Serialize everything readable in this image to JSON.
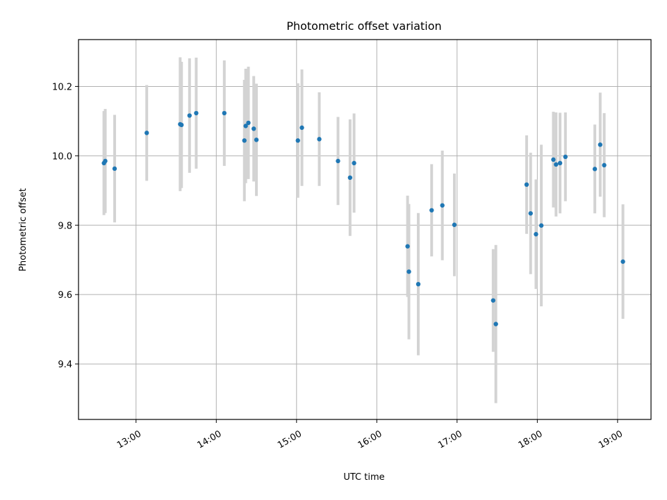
{
  "chart_data": {
    "type": "scatter",
    "title": "Photometric offset variation",
    "xlabel": "UTC time",
    "ylabel": "Photometric offset",
    "grid": true,
    "xlim": [
      "12:17",
      "19:25"
    ],
    "ylim": [
      9.24,
      10.335
    ],
    "x_ticks": [
      "13:00",
      "14:00",
      "15:00",
      "16:00",
      "17:00",
      "18:00",
      "19:00"
    ],
    "y_ticks": [
      9.4,
      9.6,
      9.8,
      10.0,
      10.2
    ],
    "y_tick_labels": [
      "9.4",
      "9.6",
      "9.8",
      "10.0",
      "10.2"
    ],
    "colors": {
      "point": "#1f77b4",
      "errorbar": "#d3d3d3",
      "grid": "#b0b0b0"
    },
    "series": [
      {
        "points": [
          {
            "x": "12:36",
            "y": 9.979,
            "err": 0.15
          },
          {
            "x": "12:37",
            "y": 9.985,
            "err": 0.15
          },
          {
            "x": "12:44",
            "y": 9.963,
            "err": 0.155
          },
          {
            "x": "13:08",
            "y": 10.066,
            "err": 0.138
          },
          {
            "x": "13:33",
            "y": 10.091,
            "err": 0.193
          },
          {
            "x": "13:34",
            "y": 10.089,
            "err": 0.182
          },
          {
            "x": "13:40",
            "y": 10.116,
            "err": 0.165
          },
          {
            "x": "13:45",
            "y": 10.123,
            "err": 0.16
          },
          {
            "x": "14:06",
            "y": 10.123,
            "err": 0.152
          },
          {
            "x": "14:21",
            "y": 10.044,
            "err": 0.175
          },
          {
            "x": "14:22",
            "y": 10.086,
            "err": 0.165
          },
          {
            "x": "14:24",
            "y": 10.095,
            "err": 0.162
          },
          {
            "x": "14:28",
            "y": 10.078,
            "err": 0.152
          },
          {
            "x": "14:30",
            "y": 10.046,
            "err": 0.162
          },
          {
            "x": "15:01",
            "y": 10.044,
            "err": 0.165
          },
          {
            "x": "15:04",
            "y": 10.081,
            "err": 0.168
          },
          {
            "x": "15:17",
            "y": 10.048,
            "err": 0.135
          },
          {
            "x": "15:31",
            "y": 9.985,
            "err": 0.127
          },
          {
            "x": "15:40",
            "y": 9.937,
            "err": 0.168
          },
          {
            "x": "15:43",
            "y": 9.979,
            "err": 0.143
          },
          {
            "x": "16:23",
            "y": 9.739,
            "err": 0.146
          },
          {
            "x": "16:24",
            "y": 9.666,
            "err": 0.195
          },
          {
            "x": "16:31",
            "y": 9.63,
            "err": 0.205
          },
          {
            "x": "16:41",
            "y": 9.843,
            "err": 0.133
          },
          {
            "x": "16:49",
            "y": 9.857,
            "err": 0.158
          },
          {
            "x": "16:58",
            "y": 9.801,
            "err": 0.148
          },
          {
            "x": "17:27",
            "y": 9.583,
            "err": 0.148
          },
          {
            "x": "17:29",
            "y": 9.515,
            "err": 0.228
          },
          {
            "x": "17:52",
            "y": 9.917,
            "err": 0.142
          },
          {
            "x": "17:55",
            "y": 9.834,
            "err": 0.175
          },
          {
            "x": "17:59",
            "y": 9.774,
            "err": 0.158
          },
          {
            "x": "18:03",
            "y": 9.799,
            "err": 0.233
          },
          {
            "x": "18:12",
            "y": 9.989,
            "err": 0.138
          },
          {
            "x": "18:14",
            "y": 9.975,
            "err": 0.15
          },
          {
            "x": "18:17",
            "y": 9.979,
            "err": 0.145
          },
          {
            "x": "18:21",
            "y": 9.997,
            "err": 0.128
          },
          {
            "x": "18:43",
            "y": 9.962,
            "err": 0.128
          },
          {
            "x": "18:47",
            "y": 10.032,
            "err": 0.15
          },
          {
            "x": "18:50",
            "y": 9.973,
            "err": 0.15
          },
          {
            "x": "19:04",
            "y": 9.695,
            "err": 0.165
          }
        ]
      }
    ]
  }
}
